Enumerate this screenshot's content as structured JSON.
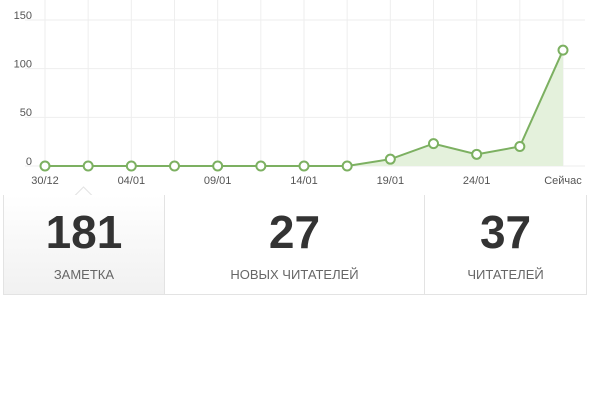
{
  "chart_data": {
    "type": "line",
    "categories": [
      "30/12",
      null,
      "04/01",
      null,
      "09/01",
      null,
      "14/01",
      null,
      "19/01",
      null,
      "24/01",
      null,
      "Сейчас"
    ],
    "values": [
      0,
      0,
      0,
      0,
      0,
      0,
      0,
      0,
      7,
      23,
      12,
      20,
      119
    ],
    "color": "#7cb061",
    "area_color": "#e4f1dc",
    "ylim": [
      0,
      150
    ],
    "yticks": [
      0,
      50,
      100,
      150
    ],
    "grid": true
  },
  "stats": [
    {
      "value": 181,
      "label": "ЗАМЕТКА",
      "selected": true
    },
    {
      "value": 27,
      "label": "НОВЫХ ЧИТАТЕЛЕЙ",
      "selected": false
    },
    {
      "value": 37,
      "label": "ЧИТАТЕЛЕЙ",
      "selected": false
    }
  ]
}
